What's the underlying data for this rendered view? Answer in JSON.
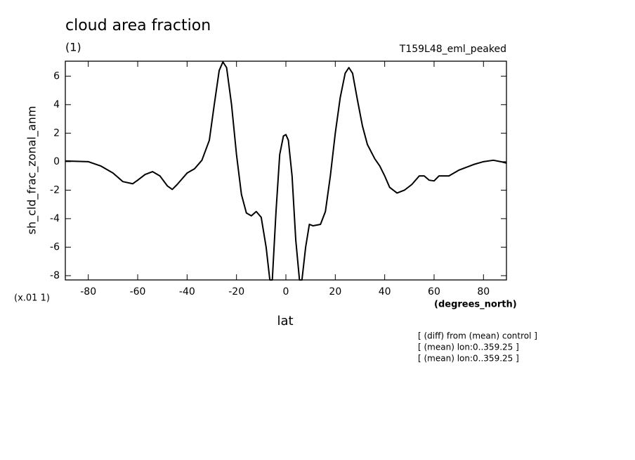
{
  "chart_data": {
    "type": "line",
    "title": "cloud area fraction",
    "subtitle": "(1)",
    "run_label": "T159L48_eml_peaked",
    "y_label": "sh_cld_frac_zonal_anm",
    "y_units": "(x.01 1)",
    "x_units": "(degrees_north)",
    "x_label": "lat",
    "notes": [
      "[ (diff) from (mean) control ]",
      "[ (mean) lon:0..359.25 ]",
      "[ (mean) lon:0..359.25 ]"
    ],
    "x": [
      -89.3,
      -80,
      -75,
      -70,
      -66,
      -62,
      -60,
      -57,
      -54,
      -51,
      -48,
      -46,
      -44,
      -40,
      -37,
      -34,
      -31,
      -29,
      -27,
      -25.5,
      -24,
      -22,
      -20,
      -18,
      -16,
      -14,
      -12,
      -10,
      -8,
      -6.5,
      -5.5,
      -4,
      -2.5,
      -1,
      0,
      1,
      2.5,
      4,
      5.5,
      6.5,
      8,
      9.5,
      11,
      14,
      16,
      18,
      20,
      22,
      24,
      25.5,
      27,
      29,
      31,
      33,
      36,
      38,
      40,
      42,
      45,
      48,
      51,
      54,
      56,
      58,
      60,
      62,
      66,
      70,
      76,
      80,
      84,
      87,
      89.3
    ],
    "series": [
      {
        "name": "sh_cld_frac_zonal_anm",
        "color": "#000000",
        "values": [
          0.05,
          0.0,
          -0.3,
          -0.8,
          -1.4,
          -1.55,
          -1.3,
          -0.9,
          -0.7,
          -1.0,
          -1.7,
          -1.95,
          -1.6,
          -0.8,
          -0.5,
          0.1,
          1.5,
          4.0,
          6.4,
          7.0,
          6.6,
          4.0,
          0.5,
          -2.3,
          -3.6,
          -3.8,
          -3.5,
          -3.9,
          -6.0,
          -8.3,
          -8.3,
          -3.5,
          0.5,
          1.8,
          1.9,
          1.5,
          -1.0,
          -5.5,
          -8.3,
          -8.3,
          -6.0,
          -4.4,
          -4.5,
          -4.4,
          -3.5,
          -1.0,
          2.0,
          4.5,
          6.2,
          6.6,
          6.2,
          4.3,
          2.5,
          1.2,
          0.2,
          -0.3,
          -1.0,
          -1.8,
          -2.2,
          -2.0,
          -1.6,
          -1.0,
          -1.0,
          -1.3,
          -1.35,
          -1.0,
          -1.0,
          -0.6,
          -0.2,
          0.0,
          0.1,
          0.0,
          -0.1
        ]
      }
    ],
    "xlim": [
      -89.3,
      89.3
    ],
    "xticks": [
      -80,
      -60,
      -40,
      -20,
      0,
      20,
      40,
      60,
      80
    ],
    "ylim": [
      -8.3,
      7.05
    ],
    "yticks": [
      -8,
      -6,
      -4,
      -2,
      0,
      2,
      4,
      6
    ]
  }
}
